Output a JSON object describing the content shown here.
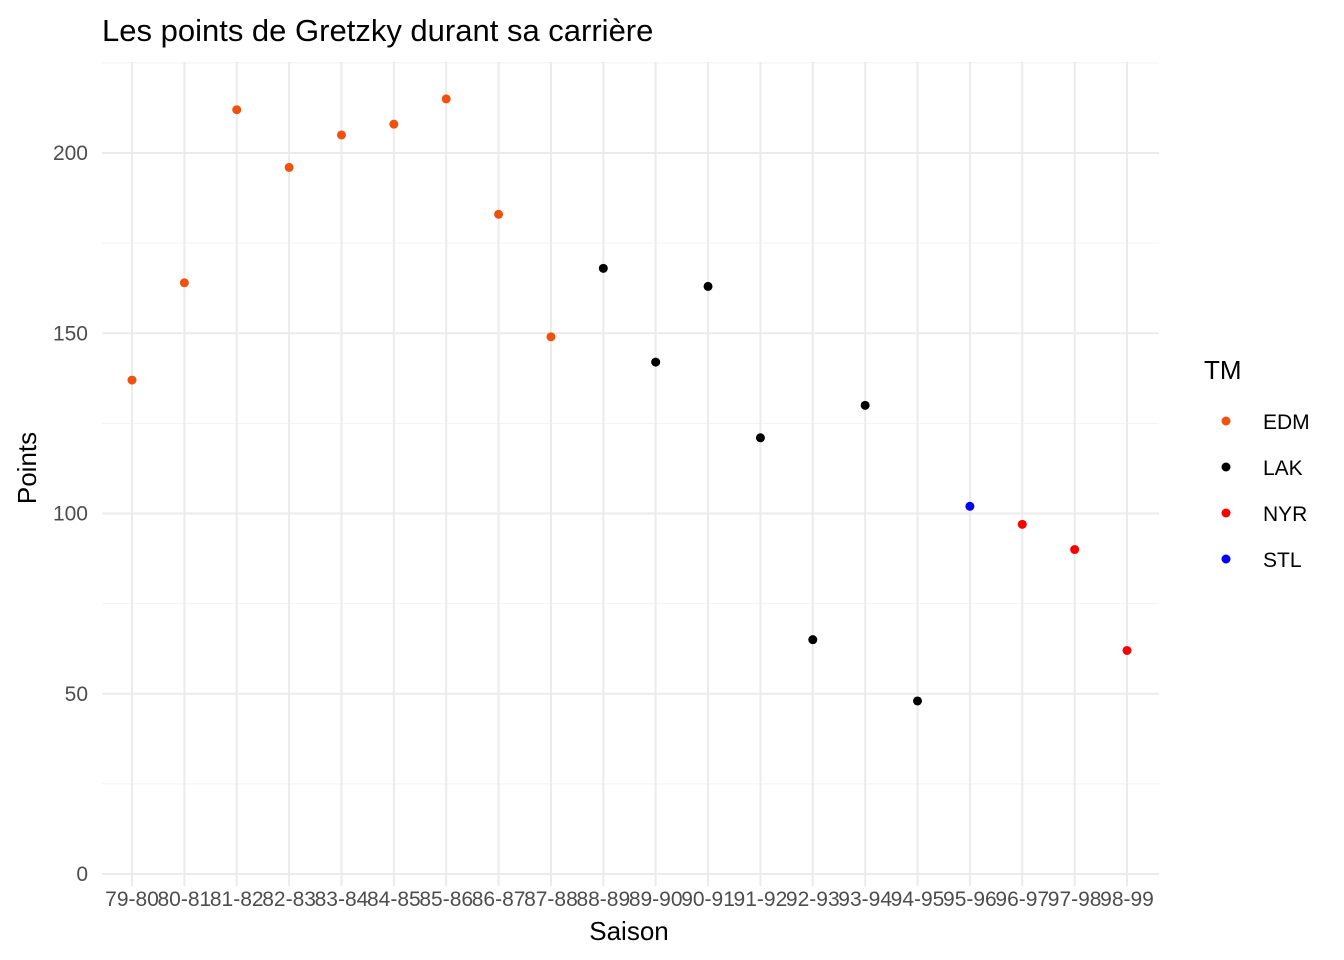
{
  "chart_data": {
    "type": "scatter",
    "title": "Les points de Gretzky durant sa carrière",
    "xlabel": "Saison",
    "ylabel": "Points",
    "categories": [
      "79-80",
      "80-81",
      "81-82",
      "82-83",
      "83-84",
      "84-85",
      "85-86",
      "86-87",
      "87-88",
      "88-89",
      "89-90",
      "90-91",
      "91-92",
      "92-93",
      "93-94",
      "94-95",
      "95-96",
      "96-97",
      "97-98",
      "98-99"
    ],
    "yticks": [
      0,
      50,
      100,
      150,
      200
    ],
    "ylim": [
      0,
      225
    ],
    "grid": true,
    "legend": {
      "title": "TM",
      "placement": "right",
      "entries": [
        {
          "name": "EDM",
          "color": "#f0520e"
        },
        {
          "name": "LAK",
          "color": "#000000"
        },
        {
          "name": "NYR",
          "color": "#ff0000"
        },
        {
          "name": "STL",
          "color": "#0000ff"
        }
      ]
    },
    "points": [
      {
        "x": "79-80",
        "y": 137,
        "team": "EDM"
      },
      {
        "x": "80-81",
        "y": 164,
        "team": "EDM"
      },
      {
        "x": "81-82",
        "y": 212,
        "team": "EDM"
      },
      {
        "x": "82-83",
        "y": 196,
        "team": "EDM"
      },
      {
        "x": "83-84",
        "y": 205,
        "team": "EDM"
      },
      {
        "x": "84-85",
        "y": 208,
        "team": "EDM"
      },
      {
        "x": "85-86",
        "y": 215,
        "team": "EDM"
      },
      {
        "x": "86-87",
        "y": 183,
        "team": "EDM"
      },
      {
        "x": "87-88",
        "y": 149,
        "team": "EDM"
      },
      {
        "x": "88-89",
        "y": 168,
        "team": "LAK"
      },
      {
        "x": "89-90",
        "y": 142,
        "team": "LAK"
      },
      {
        "x": "90-91",
        "y": 163,
        "team": "LAK"
      },
      {
        "x": "91-92",
        "y": 121,
        "team": "LAK"
      },
      {
        "x": "92-93",
        "y": 65,
        "team": "LAK"
      },
      {
        "x": "93-94",
        "y": 130,
        "team": "LAK"
      },
      {
        "x": "94-95",
        "y": 48,
        "team": "LAK"
      },
      {
        "x": "95-96",
        "y": 102,
        "team": "STL"
      },
      {
        "x": "96-97",
        "y": 97,
        "team": "NYR"
      },
      {
        "x": "97-98",
        "y": 90,
        "team": "NYR"
      },
      {
        "x": "98-99",
        "y": 62,
        "team": "NYR"
      }
    ]
  }
}
